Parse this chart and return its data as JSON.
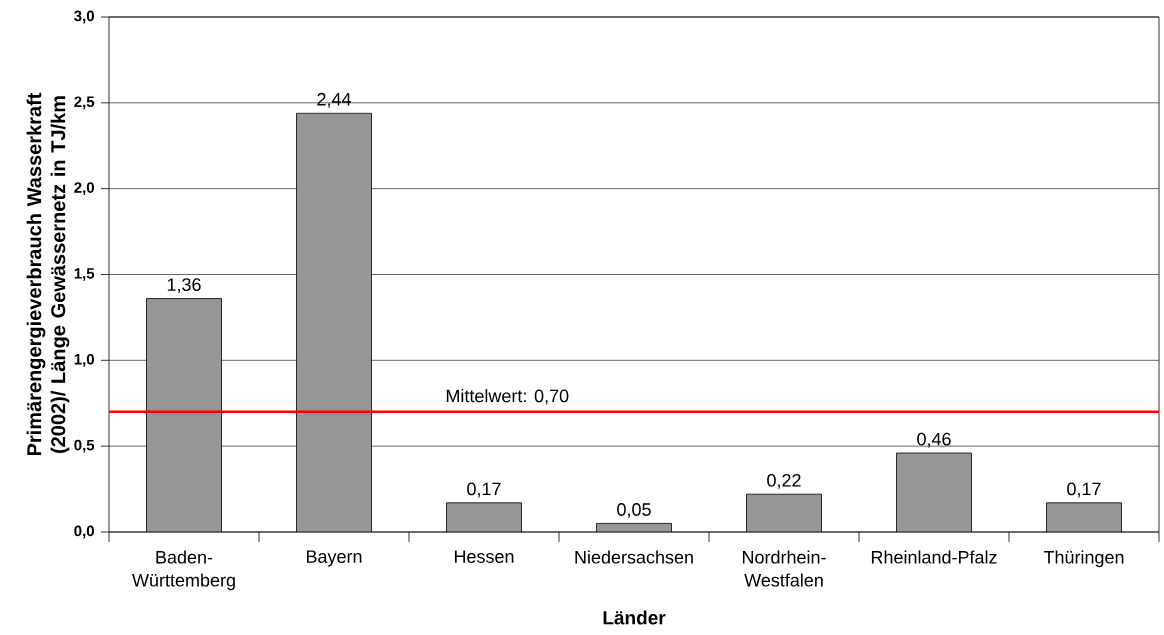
{
  "chart_data": {
    "type": "bar",
    "xlabel": "Länder",
    "ylabel": "Primärengergieverbrauch Wasserkraft (2002)/ Länge Gewässernetz in TJ/km",
    "categories": [
      "Baden-Württemberg",
      "Bayern",
      "Hessen",
      "Niedersachsen",
      "Nordrhein-Westfalen",
      "Rheinland-Pfalz",
      "Thüringen"
    ],
    "values": [
      1.36,
      2.44,
      0.17,
      0.05,
      0.22,
      0.46,
      0.17
    ],
    "value_labels": [
      "1,36",
      "2,44",
      "0,17",
      "0,05",
      "0,22",
      "0,46",
      "0,17"
    ],
    "color": "#969696",
    "ylim": [
      0,
      3
    ],
    "yticks": [
      {
        "value": 0,
        "label": "0,0"
      },
      {
        "value": 0.5,
        "label": "0,5"
      },
      {
        "value": 1,
        "label": "1,0"
      },
      {
        "value": 1.5,
        "label": "1,5"
      },
      {
        "value": 2,
        "label": "2,0"
      },
      {
        "value": 2.5,
        "label": "2,5"
      },
      {
        "value": 3,
        "label": "3,0"
      }
    ],
    "ref_lines": [
      {
        "axis": "y",
        "value": 0.7,
        "label": "Mittelwert: 0,70",
        "color": "#ff0000"
      }
    ],
    "grid": "y"
  }
}
